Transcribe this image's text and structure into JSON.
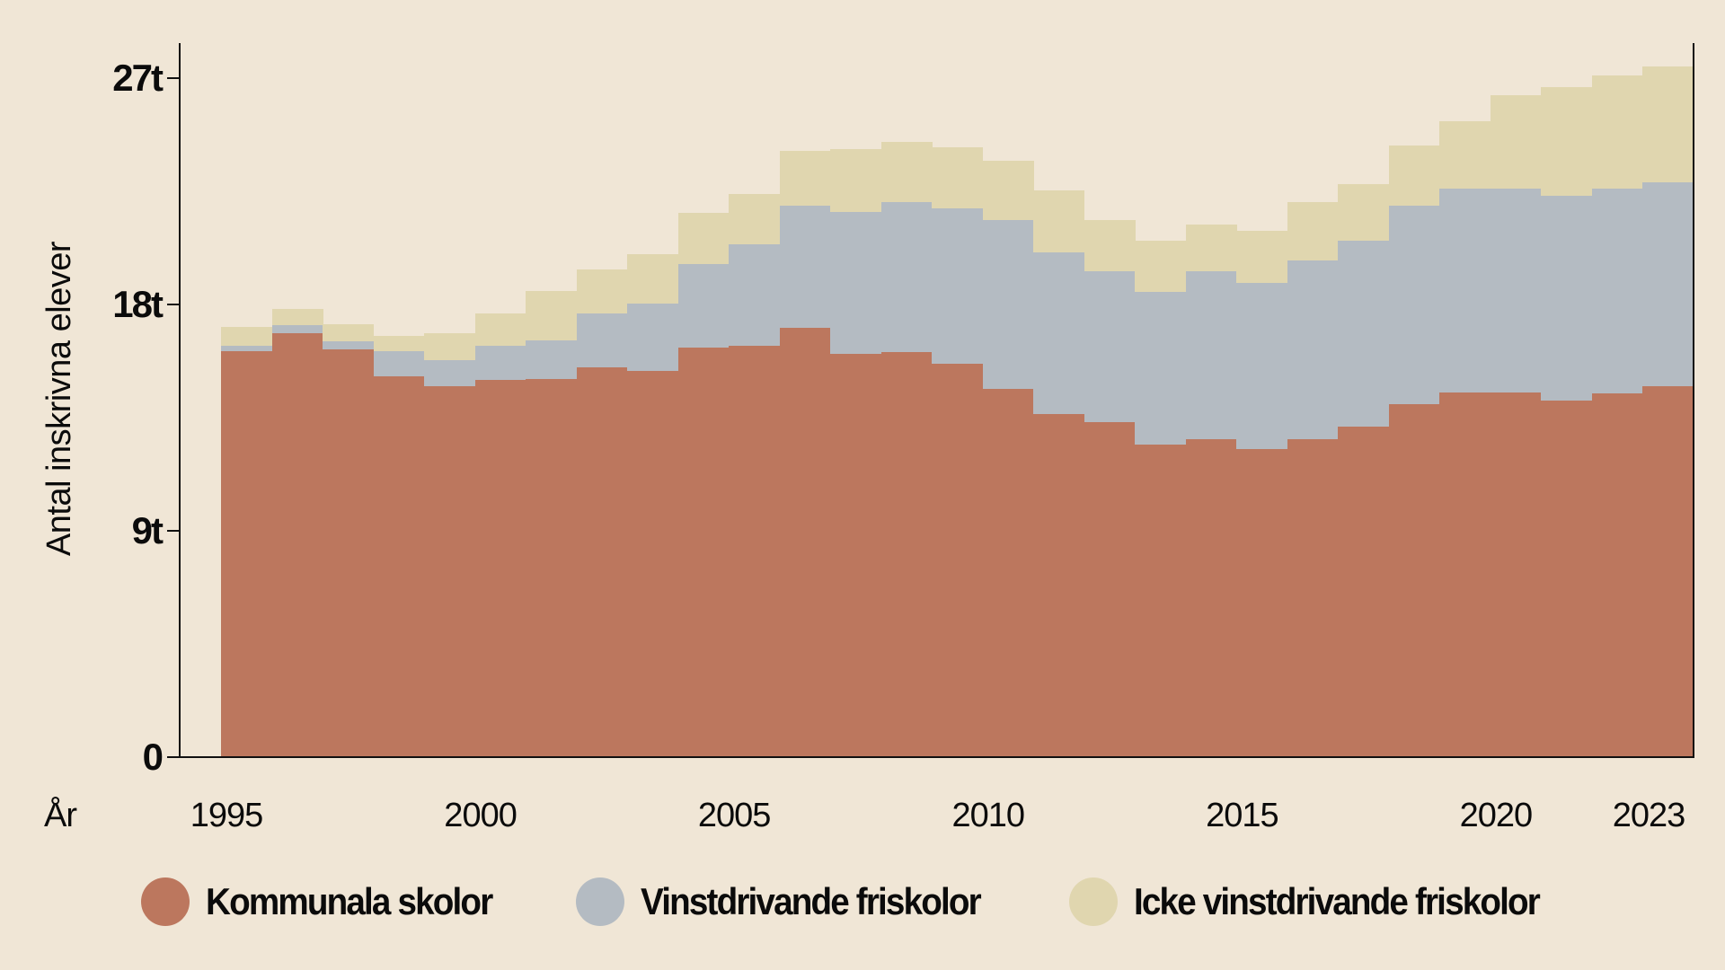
{
  "chart_data": {
    "type": "bar",
    "stacked": true,
    "title": "",
    "xlabel": "År",
    "ylabel": "Antal inskrivna elever",
    "ylim": [
      0,
      27.5
    ],
    "yticks": [
      {
        "value": 0,
        "label": "0"
      },
      {
        "value": 9,
        "label": "9t"
      },
      {
        "value": 18,
        "label": "18t"
      },
      {
        "value": 27,
        "label": "27t"
      }
    ],
    "xticks": [
      {
        "year": 1995,
        "label": "1995"
      },
      {
        "year": 2000,
        "label": "2000"
      },
      {
        "year": 2005,
        "label": "2005"
      },
      {
        "year": 2010,
        "label": "2010"
      },
      {
        "year": 2015,
        "label": "2015"
      },
      {
        "year": 2020,
        "label": "2020"
      },
      {
        "year": 2023,
        "label": "2023"
      }
    ],
    "grid": false,
    "legend_position": "bottom",
    "unit": "tusental elever",
    "categories": [
      1995,
      1996,
      1997,
      1998,
      1999,
      2000,
      2001,
      2002,
      2003,
      2004,
      2005,
      2006,
      2007,
      2008,
      2009,
      2010,
      2011,
      2012,
      2013,
      2014,
      2015,
      2016,
      2017,
      2018,
      2019,
      2020,
      2021,
      2022,
      2023
    ],
    "series": [
      {
        "name": "Kommunala skolor",
        "color": "#BC775E",
        "values": [
          16.15,
          16.86,
          16.2,
          15.13,
          14.74,
          15.0,
          15.05,
          15.5,
          15.35,
          16.29,
          16.36,
          17.07,
          16.05,
          16.1,
          15.63,
          14.63,
          13.64,
          13.32,
          12.42,
          12.65,
          12.26,
          12.64,
          13.13,
          14.04,
          14.49,
          14.49,
          14.18,
          14.48,
          14.74
        ]
      },
      {
        "name": "Vinstdrivande friskolor",
        "color": "#B4BBC2",
        "values": [
          0.2,
          0.32,
          0.32,
          1.0,
          1.06,
          1.37,
          1.53,
          2.15,
          2.7,
          3.32,
          4.03,
          4.85,
          5.63,
          5.96,
          6.2,
          6.74,
          6.43,
          5.99,
          6.09,
          6.66,
          6.59,
          7.11,
          7.42,
          7.88,
          8.12,
          8.12,
          8.14,
          8.14,
          8.13
        ]
      },
      {
        "name": "Icke vinstdrivande friskolor",
        "color": "#E0D6AF",
        "values": [
          0.77,
          0.65,
          0.68,
          0.63,
          1.06,
          1.27,
          1.94,
          1.75,
          1.95,
          2.02,
          2.01,
          2.2,
          2.5,
          2.39,
          2.43,
          2.33,
          2.47,
          2.06,
          2.03,
          1.88,
          2.08,
          2.31,
          2.22,
          2.39,
          2.69,
          3.7,
          4.32,
          4.49,
          4.58
        ]
      }
    ]
  },
  "axis": {
    "y_title": "Antal inskrivna elever",
    "x_title": "År"
  },
  "legend": {
    "items": [
      {
        "label": "Kommunala skolor",
        "color": "#BC775E"
      },
      {
        "label": "Vinstdrivande friskolor",
        "color": "#B4BBC2"
      },
      {
        "label": "Icke vinstdrivande friskolor",
        "color": "#E0D6AF"
      }
    ]
  },
  "colors": {
    "background": "#F0E6D6",
    "axis": "#111111"
  }
}
